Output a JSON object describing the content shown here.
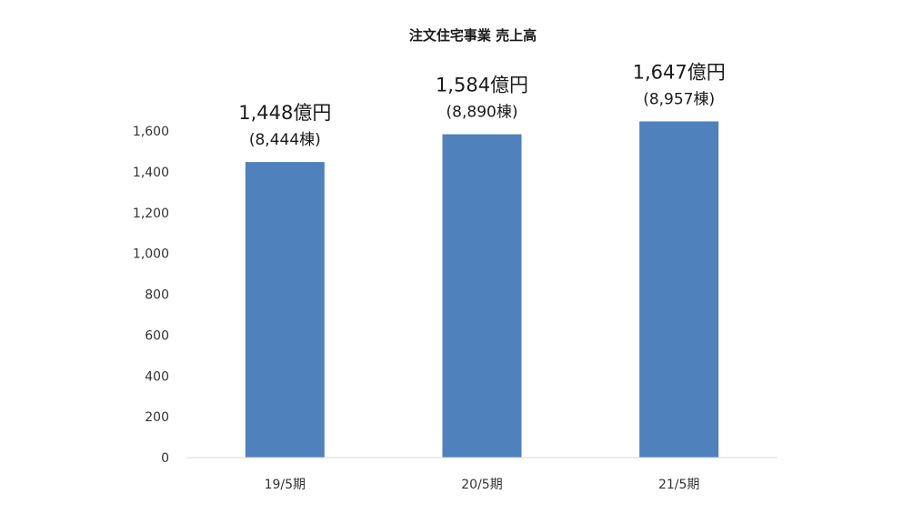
{
  "chart_data": {
    "type": "bar",
    "title": "注文住宅事業 売上高",
    "xlabel": "",
    "ylabel": "",
    "categories": [
      "19/5期",
      "20/5期",
      "21/5期"
    ],
    "values": [
      1448,
      1584,
      1647
    ],
    "value_labels": [
      "1,448億円",
      "1,584億円",
      "1,647億円"
    ],
    "sub_labels": [
      "(8,444棟)",
      "(8,890棟)",
      "(8,957棟)"
    ],
    "ylim": [
      0,
      1600
    ],
    "yticks": [
      0,
      200,
      400,
      600,
      800,
      1000,
      1200,
      1400,
      1600
    ],
    "ytick_labels": [
      "0",
      "200",
      "400",
      "600",
      "800",
      "1,000",
      "1,200",
      "1,400",
      "1,600"
    ],
    "grid": false,
    "bar_color": "#4f81bd",
    "axis_color": "#d9d9d9"
  }
}
